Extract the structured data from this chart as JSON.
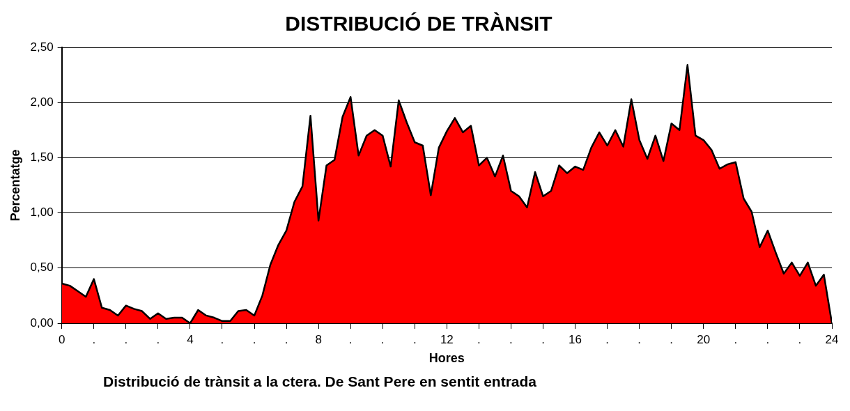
{
  "chart_data": {
    "type": "area",
    "title": "DISTRIBUCIÓ DE TRÀNSIT",
    "xlabel": "Hores",
    "ylabel": "Percentatge",
    "annotations": [
      "Distribució de trànsit a la ctera. De Sant Pere en sentit entrada"
    ],
    "x": [
      0,
      0.25,
      0.5,
      0.75,
      1,
      1.25,
      1.5,
      1.75,
      2,
      2.25,
      2.5,
      2.75,
      3,
      3.25,
      3.5,
      3.75,
      4,
      4.25,
      4.5,
      4.75,
      5,
      5.25,
      5.5,
      5.75,
      6,
      6.25,
      6.5,
      6.75,
      7,
      7.25,
      7.5,
      7.75,
      8,
      8.25,
      8.5,
      8.75,
      9,
      9.25,
      9.5,
      9.75,
      10,
      10.25,
      10.5,
      10.75,
      11,
      11.25,
      11.5,
      11.75,
      12,
      12.25,
      12.5,
      12.75,
      13,
      13.25,
      13.5,
      13.75,
      14,
      14.25,
      14.5,
      14.75,
      15,
      15.25,
      15.5,
      15.75,
      16,
      16.25,
      16.5,
      16.75,
      17,
      17.25,
      17.5,
      17.75,
      18,
      18.25,
      18.5,
      18.75,
      19,
      19.25,
      19.5,
      19.75,
      20,
      20.25,
      20.5,
      20.75,
      21,
      21.25,
      21.5,
      21.75,
      22,
      22.25,
      22.5,
      22.75,
      23,
      23.25,
      23.5,
      23.75,
      24
    ],
    "series": [
      {
        "color": "#ff0000",
        "values": [
          0.36,
          0.34,
          0.29,
          0.24,
          0.4,
          0.14,
          0.12,
          0.07,
          0.16,
          0.13,
          0.11,
          0.04,
          0.09,
          0.04,
          0.05,
          0.05,
          0,
          0.12,
          0.07,
          0.05,
          0.02,
          0.02,
          0.11,
          0.12,
          0.07,
          0.25,
          0.53,
          0.71,
          0.84,
          1.1,
          1.24,
          1.88,
          0.93,
          1.43,
          1.48,
          1.87,
          2.05,
          1.52,
          1.7,
          1.75,
          1.7,
          1.42,
          2.02,
          1.82,
          1.64,
          1.61,
          1.16,
          1.59,
          1.74,
          1.86,
          1.73,
          1.79,
          1.43,
          1.5,
          1.33,
          1.52,
          1.2,
          1.15,
          1.05,
          1.37,
          1.15,
          1.2,
          1.43,
          1.36,
          1.42,
          1.39,
          1.59,
          1.73,
          1.61,
          1.75,
          1.6,
          2.03,
          1.66,
          1.49,
          1.7,
          1.47,
          1.81,
          1.75,
          2.34,
          1.7,
          1.66,
          1.57,
          1.4,
          1.44,
          1.46,
          1.13,
          1.01,
          0.69,
          0.84,
          0.64,
          0.45,
          0.55,
          0.43,
          0.55,
          0.34,
          0.44,
          0
        ]
      }
    ],
    "xlim": [
      0,
      24
    ],
    "xticks": [
      0,
      {
        "value": 1,
        "label": "."
      },
      {
        "value": 2,
        "label": "."
      },
      {
        "value": 3,
        "label": "."
      },
      4,
      {
        "value": 5,
        "label": "."
      },
      {
        "value": 6,
        "label": "."
      },
      {
        "value": 7,
        "label": "."
      },
      8,
      {
        "value": 9,
        "label": "."
      },
      {
        "value": 10,
        "label": "."
      },
      {
        "value": 11,
        "label": "."
      },
      12,
      {
        "value": 13,
        "label": "."
      },
      {
        "value": 14,
        "label": "."
      },
      {
        "value": 15,
        "label": "."
      },
      16,
      {
        "value": 17,
        "label": "."
      },
      {
        "value": 18,
        "label": "."
      },
      {
        "value": 19,
        "label": "."
      },
      20,
      {
        "value": 21,
        "label": "."
      },
      {
        "value": 22,
        "label": "."
      },
      {
        "value": 23,
        "label": "."
      },
      24
    ],
    "ylim": [
      0,
      2.5
    ],
    "yticks": [
      {
        "value": 0,
        "label": "0,00"
      },
      {
        "value": 0.5,
        "label": "0,50"
      },
      {
        "value": 1,
        "label": "1,00"
      },
      {
        "value": 1.5,
        "label": "1,50"
      },
      {
        "value": 2,
        "label": "2,00"
      },
      {
        "value": 2.5,
        "label": "2,50"
      }
    ],
    "grid": "y",
    "marker": "none",
    "line_style": "solid"
  }
}
